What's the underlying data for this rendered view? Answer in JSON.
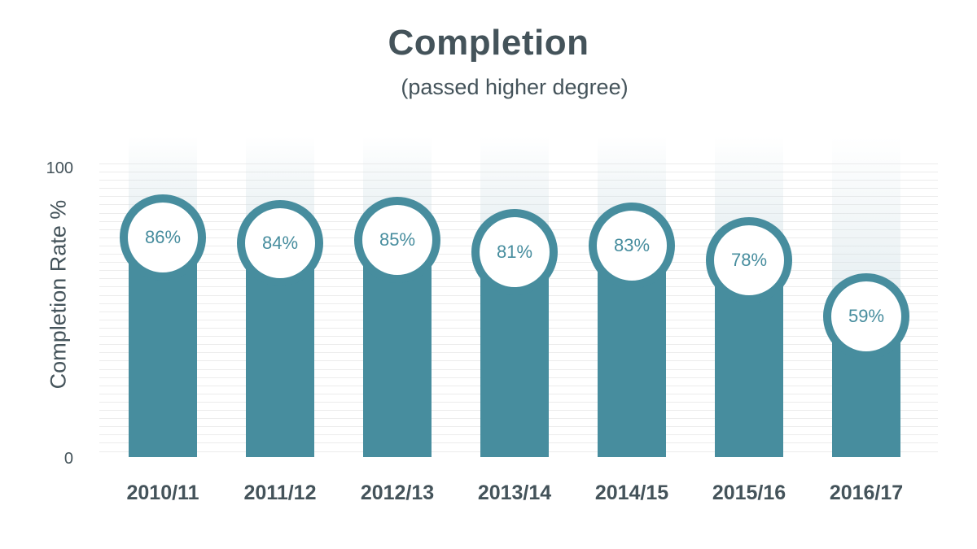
{
  "chart_data": {
    "type": "bar",
    "title": "Completion",
    "subtitle": "(passed higher degree)",
    "xlabel": "",
    "ylabel": "Completion Rate %",
    "categories": [
      "2010/11",
      "2011/12",
      "2012/13",
      "2013/14",
      "2014/15",
      "2015/16",
      "2016/17"
    ],
    "values": [
      86,
      84,
      85,
      81,
      83,
      78,
      59
    ],
    "value_labels": [
      "86%",
      "84%",
      "85%",
      "81%",
      "83%",
      "78%",
      "59%"
    ],
    "ylim": [
      0,
      100
    ],
    "yticks": [
      "100",
      "0"
    ],
    "grid": true,
    "legend": null,
    "colors": {
      "bar": "#478d9e",
      "text": "#44535a",
      "grid": "#ececec"
    }
  }
}
